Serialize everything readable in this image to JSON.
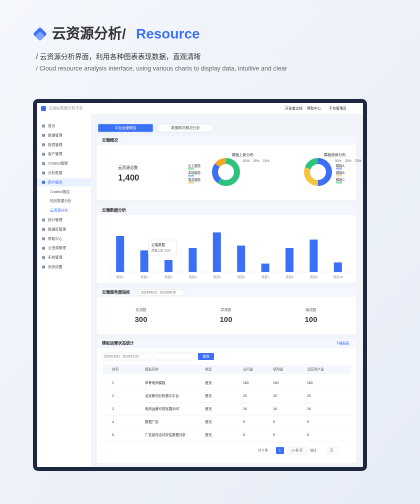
{
  "header": {
    "title": "云资源分析/",
    "title_en": "Resource",
    "subtitle_cn": "/ 云资源分析界面，利用各种图表表现数据，直观清晰",
    "subtitle_en": "/ Cloud resource analysis interface, using various charts to display data, intuitive and clear"
  },
  "app": {
    "topbar": {
      "brand": "云端BI数据分析平台",
      "links": [
        "开发者文档",
        "帮助中心",
        "平台管理员"
      ]
    },
    "sidebar": {
      "items": [
        "首页",
        "数据管理",
        "报表管理",
        "客户管理",
        "Chatbot管理",
        "分析数据",
        "用户服务",
        "Chatbot报告",
        "知识数据分析",
        "云资源分析",
        "统计管理",
        "数据库管理",
        "帮助中心",
        "云资源管理",
        "系统管理",
        "系统设置"
      ],
      "active_group": 6,
      "active": 9,
      "sub_from": 7,
      "sub_to": 9
    },
    "tabs": {
      "items": [
        "平台运营概括",
        "数据概况概况分析"
      ],
      "active": 0
    },
    "overview": {
      "title": "云端概况",
      "stat_label": "云资源总数",
      "stat_value": "1,400",
      "donuts": [
        {
          "center": "模板上新分布",
          "legend": [
            "云上服务",
            "本地服务",
            "混合服务"
          ],
          "colors": [
            "#2ec27e",
            "#3b6ff5",
            "#f5a623"
          ],
          "values": [
            60,
            25,
            15
          ],
          "value_labels": [
            "60%",
            "25%",
            "15%"
          ]
        },
        {
          "center": "模板使用分布",
          "legend": [
            "模板A",
            "模板B",
            "模板C"
          ],
          "colors": [
            "#3b6ff5",
            "#f5c542",
            "#2ec27e"
          ],
          "values": [
            50,
            30,
            20
          ],
          "value_labels": [
            "50%",
            "30%",
            "20%"
          ]
        }
      ]
    },
    "bar_chart": {
      "type": "bar",
      "title": "云端数据分析",
      "categories": [
        "项目1",
        "项目2",
        "项目3",
        "项目4",
        "项目5",
        "项目6",
        "项目7",
        "项目8",
        "项目9",
        "项目10"
      ],
      "values": [
        30,
        18,
        10,
        20,
        33,
        22,
        7,
        20,
        27,
        8
      ],
      "color": "#3b6ff5",
      "ylim": [
        0,
        40
      ],
      "tooltip": {
        "title": "云端数据",
        "text": "开发人员 2023"
      }
    },
    "server": {
      "title": "云端服务器指标",
      "range": "2023/04/10 - 2023/04/16",
      "stats": [
        {
          "label": "在线数",
          "value": "300"
        },
        {
          "label": "异常数",
          "value": "100"
        },
        {
          "label": "离线数",
          "value": "100"
        }
      ]
    },
    "table": {
      "title": "模板运营状态统计",
      "download": "下载报表",
      "date": "2019/12/31 - 2019/11/22",
      "search": "查询",
      "columns": [
        "排名",
        "模板名称",
        "类型",
        "访问量",
        "使用量",
        "活跃用户量"
      ],
      "rows": [
        [
          "1",
          "甲骨电商模板",
          "首页",
          "160",
          "160",
          "160"
        ],
        [
          "2",
          "北京移动分析展示平台",
          "首页",
          "20",
          "20",
          "20"
        ],
        [
          "3",
          "电商运营可视化展示BT",
          "首页",
          "16",
          "16",
          "16"
        ],
        [
          "4",
          "数据广告",
          "首页",
          "5",
          "5",
          "5"
        ],
        [
          "5",
          "广告宣传活动评估数据分析",
          "首页",
          "5",
          "5",
          "5"
        ]
      ],
      "pager": [
        "共 5 条",
        "1",
        "10 条/页",
        "前往",
        "页"
      ]
    }
  }
}
